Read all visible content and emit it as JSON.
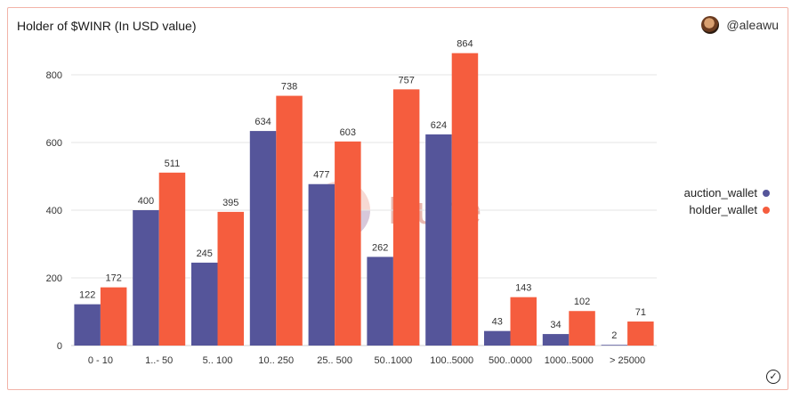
{
  "header": {
    "title": "Holder of $WINR (In USD value)",
    "author": "@aleawu"
  },
  "watermark": "Dune",
  "legend": [
    {
      "name": "auction_wallet",
      "color": "#55559a"
    },
    {
      "name": "holder_wallet",
      "color": "#f55d3e"
    }
  ],
  "chart_data": {
    "type": "bar",
    "title": "Holder of $WINR (In USD value)",
    "categories": [
      "0 - 10",
      "1..- 50",
      "5.. 100",
      "10.. 250",
      "25.. 500",
      "50..1000",
      "100..5000",
      "500..0000",
      "1000..5000",
      "> 25000"
    ],
    "series": [
      {
        "name": "auction_wallet",
        "color": "#55559a",
        "values": [
          122,
          400,
          245,
          634,
          477,
          262,
          624,
          43,
          34,
          2
        ]
      },
      {
        "name": "holder_wallet",
        "color": "#f55d3e",
        "values": [
          172,
          511,
          395,
          738,
          603,
          757,
          864,
          143,
          102,
          71
        ]
      }
    ],
    "yticks": [
      0,
      200,
      400,
      600,
      800
    ],
    "ylim": [
      0,
      900
    ],
    "grid": true,
    "legend_position": "right"
  }
}
